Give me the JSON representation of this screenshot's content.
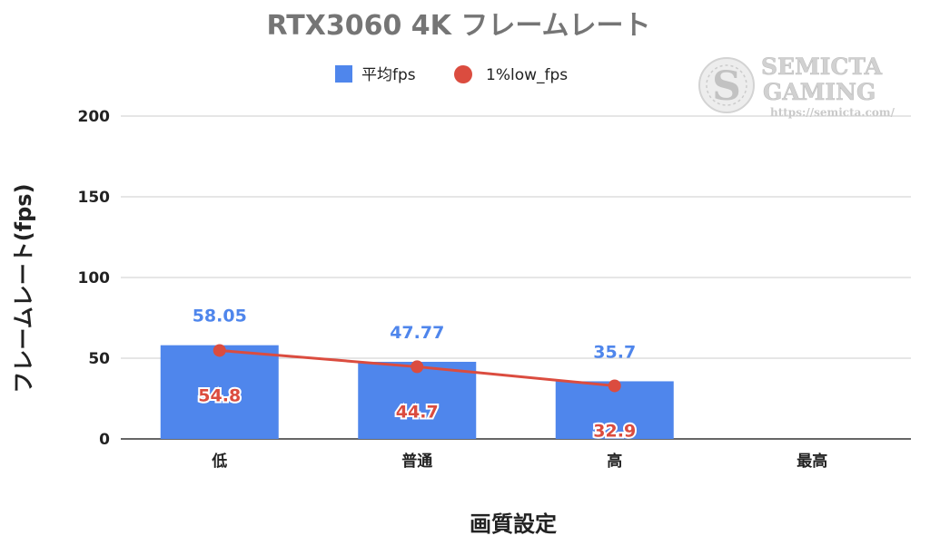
{
  "chart_data": {
    "type": "bar",
    "title": "RTX3060 4K フレームレート",
    "xlabel": "画質設定",
    "ylabel": "フレームレート(fps)",
    "categories": [
      "低",
      "普通",
      "高",
      "最高"
    ],
    "ylim": [
      0,
      200
    ],
    "yticks": [
      0,
      50,
      100,
      150,
      200
    ],
    "grid": true,
    "legend_position": "top",
    "series": [
      {
        "name": "平均fps",
        "kind": "bar",
        "color": "#4f86ec",
        "values": [
          58.05,
          47.77,
          35.7,
          null
        ],
        "labels": [
          "58.05",
          "47.77",
          "35.7",
          ""
        ]
      },
      {
        "name": "1%low_fps",
        "kind": "line",
        "color": "#db4c3f",
        "values": [
          54.8,
          44.7,
          32.9,
          null
        ],
        "labels": [
          "54.8",
          "44.7",
          "32.9",
          ""
        ]
      }
    ]
  },
  "watermark": {
    "line1": "SEMICTA",
    "line2": "GAMING",
    "url": "https://semicta.com/",
    "logo_letter": "S",
    "icon": "semicta-s-logo-icon"
  }
}
